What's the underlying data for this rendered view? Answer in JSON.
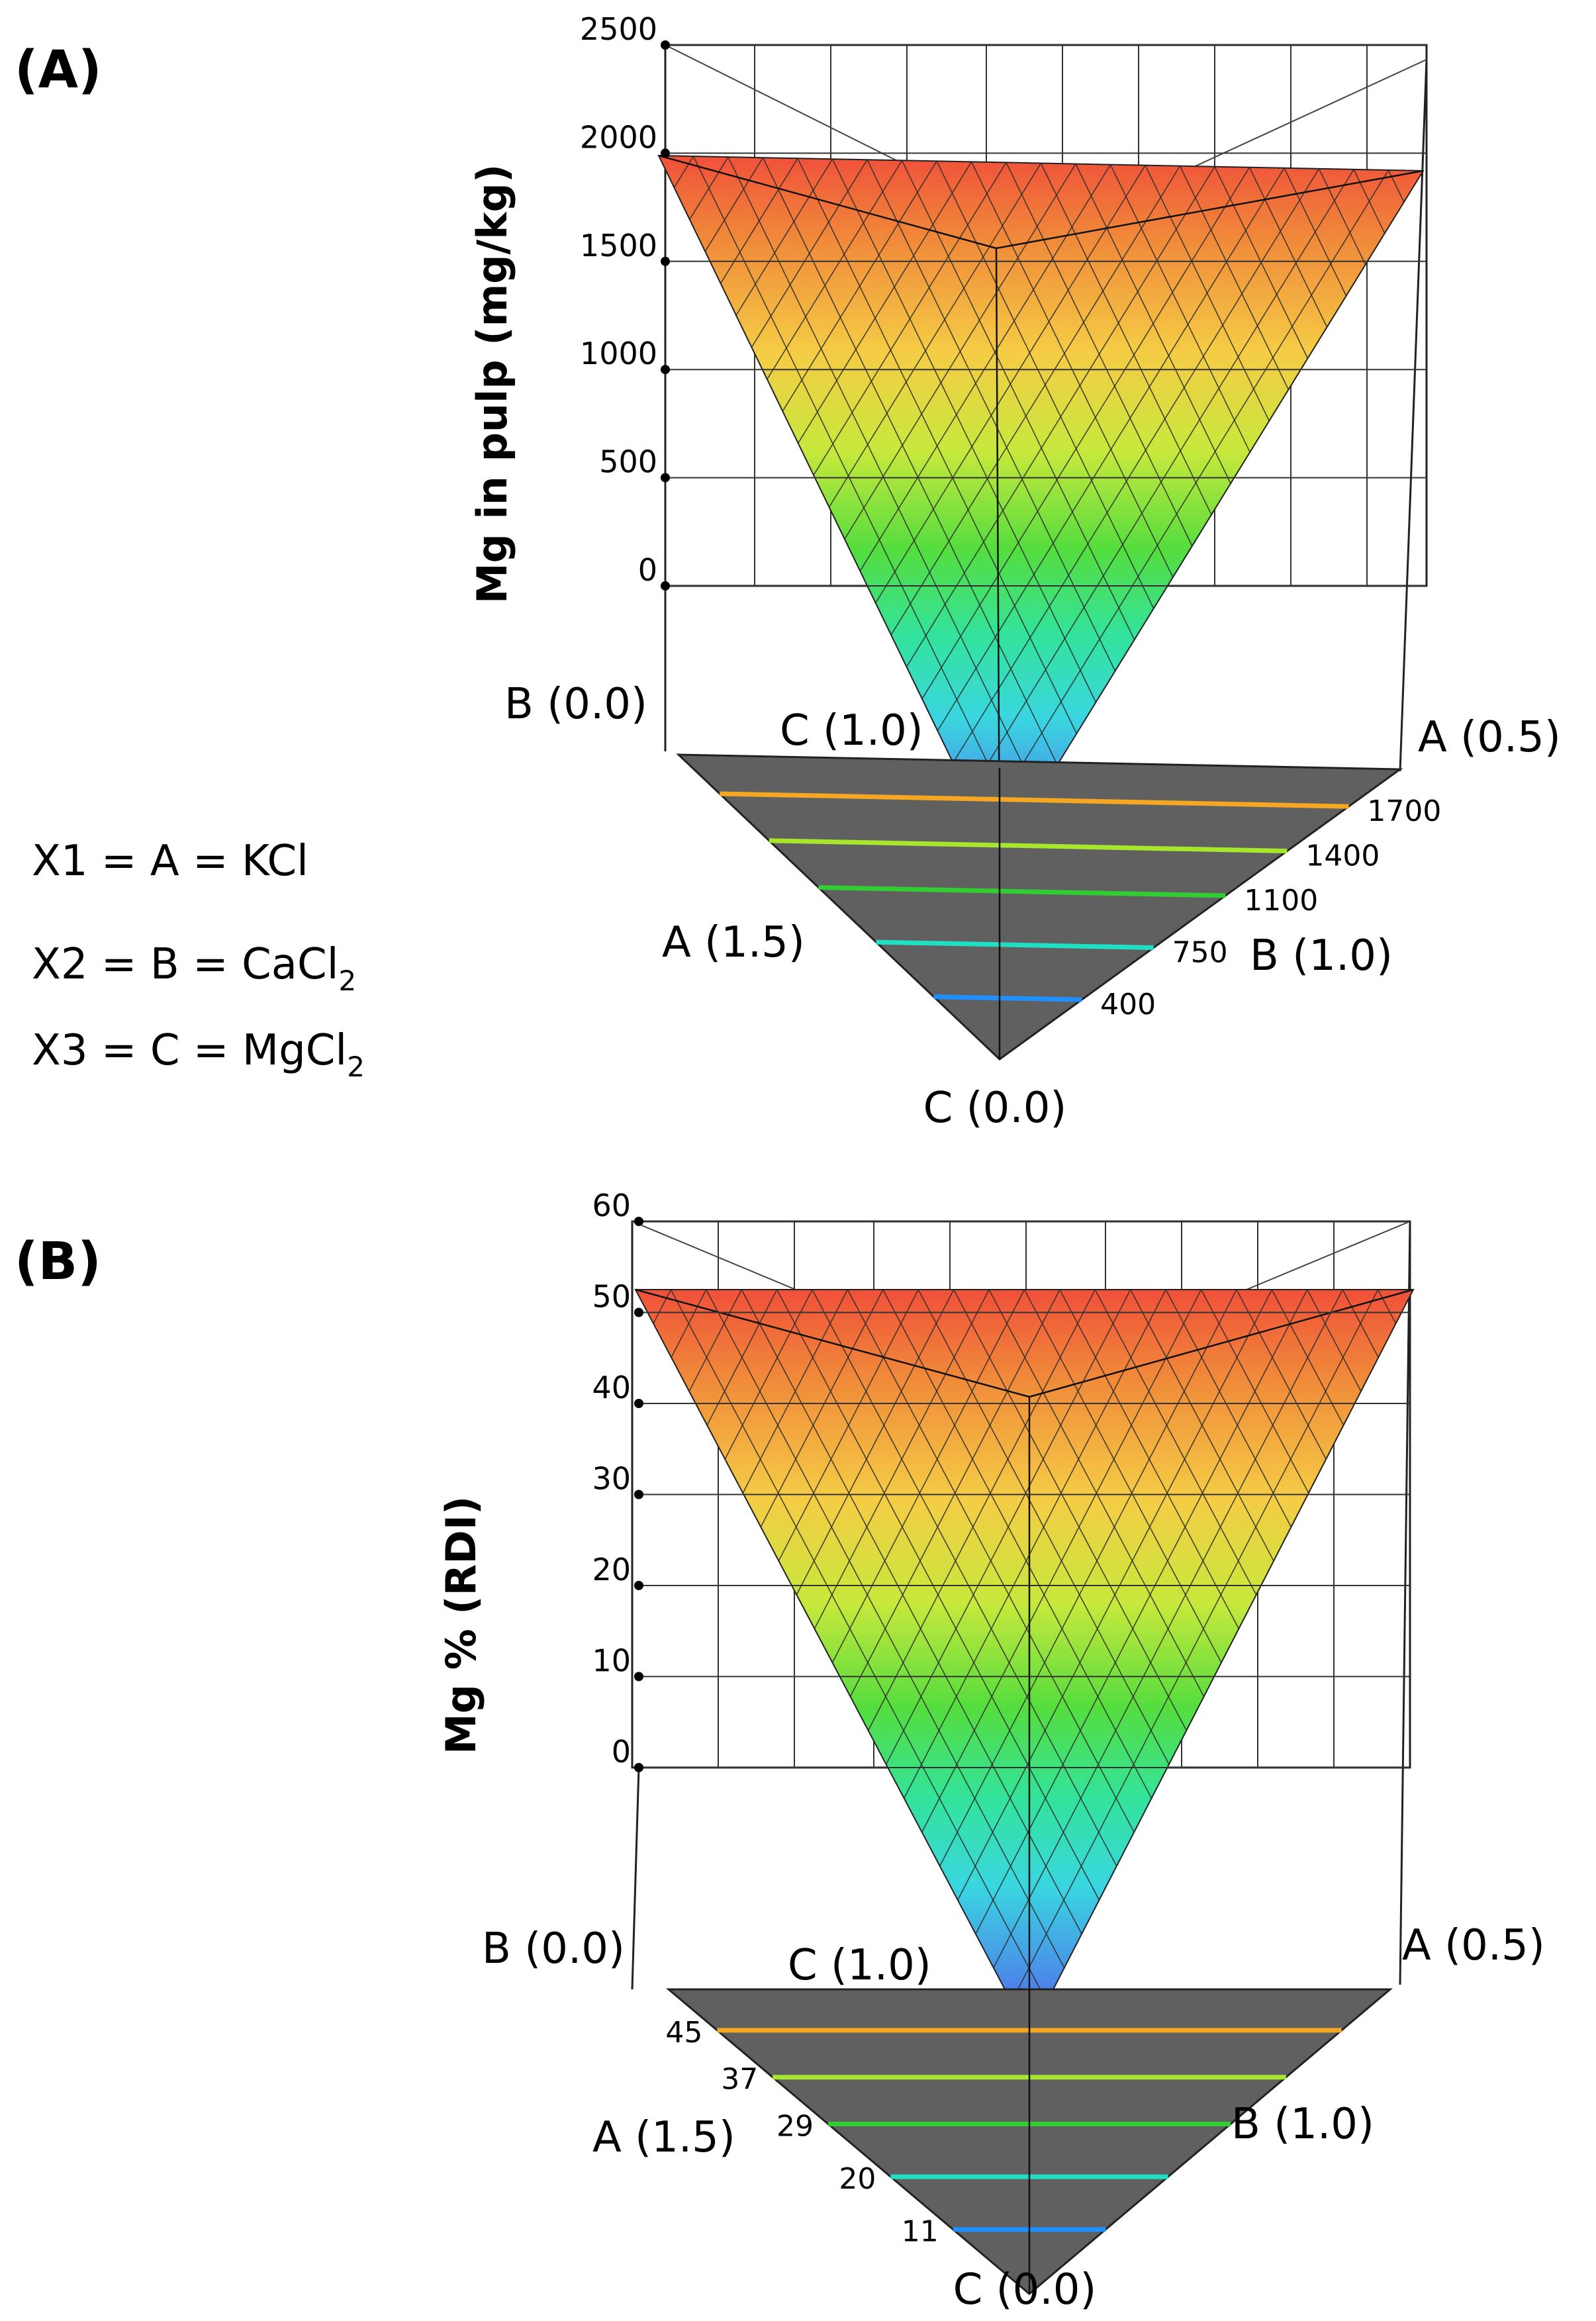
{
  "legend": {
    "lines": [
      {
        "text": "X1 = A = KCl",
        "sub": ""
      },
      {
        "text": "X2 = B = CaCl",
        "sub": "2"
      },
      {
        "text": "X3 = C = MgCl",
        "sub": "2"
      }
    ]
  },
  "chart_data": [
    {
      "panel_label": "(A)",
      "type": "surface-3d-mixture",
      "zlabel": "Mg in pulp (mg/kg)",
      "zticks": [
        "0",
        "500",
        "1000",
        "1500",
        "2000",
        "2500"
      ],
      "zlim": [
        0,
        2500
      ],
      "vertex_labels": {
        "back_left": "B (0.0)",
        "back_center": "C (1.0)",
        "right": "A (0.5)",
        "side_left": "A (1.5)",
        "side_right": "B (1.0)",
        "bottom": "C (0.0)"
      },
      "surface": {
        "top_value": 1950,
        "apex_value": 0
      },
      "contour_side": "right",
      "contours": [
        {
          "label": "1700",
          "value": 1700,
          "color": "#f5a623"
        },
        {
          "label": "1400",
          "value": 1400,
          "color": "#a8e62c"
        },
        {
          "label": "1100",
          "value": 1100,
          "color": "#32cd32"
        },
        {
          "label": "750",
          "value": 750,
          "color": "#1fe0c4"
        },
        {
          "label": "400",
          "value": 400,
          "color": "#1e90ff"
        }
      ]
    },
    {
      "panel_label": "(B)",
      "type": "surface-3d-mixture",
      "zlabel": "Mg % (RDI)",
      "zticks": [
        "0",
        "10",
        "20",
        "30",
        "40",
        "50",
        "60"
      ],
      "zlim": [
        0,
        60
      ],
      "vertex_labels": {
        "back_left": "B (0.0)",
        "back_center": "C (1.0)",
        "right": "A (0.5)",
        "side_left": "A (1.5)",
        "side_right": "B (1.0)",
        "bottom": "C (0.0)"
      },
      "surface": {
        "top_value": 52,
        "apex_value": 0
      },
      "contour_side": "left",
      "contours": [
        {
          "label": "45",
          "value": 45,
          "color": "#f5a623"
        },
        {
          "label": "37",
          "value": 37,
          "color": "#a8e62c"
        },
        {
          "label": "29",
          "value": 29,
          "color": "#32cd32"
        },
        {
          "label": "20",
          "value": 20,
          "color": "#1fe0c4"
        },
        {
          "label": "11",
          "value": 11,
          "color": "#1e90ff"
        }
      ]
    }
  ]
}
